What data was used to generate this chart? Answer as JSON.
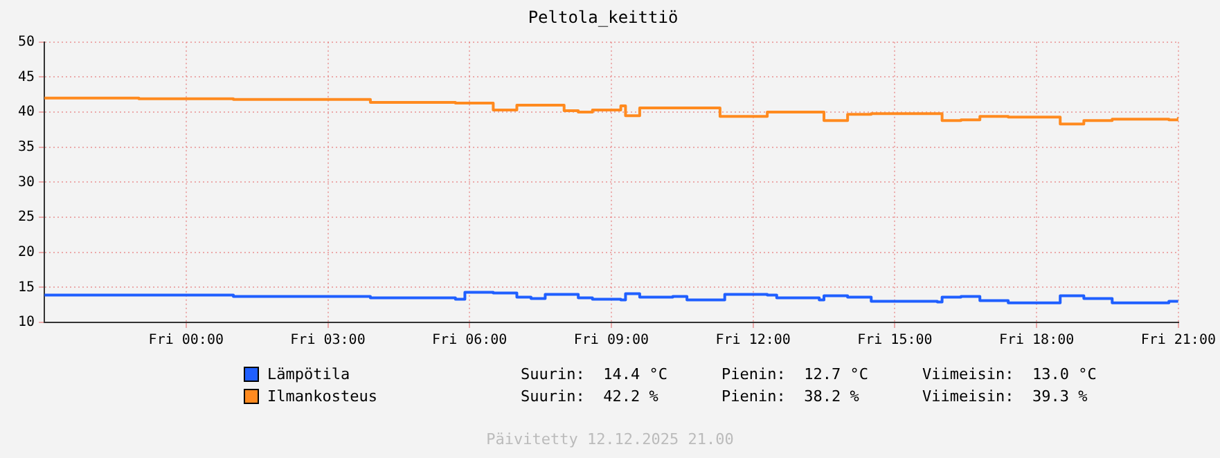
{
  "chart_data": {
    "type": "step",
    "title": "Peltola_keittiö",
    "x": [
      "2025-12-11T21:00",
      "2025-12-11T23:00",
      "2025-12-12T01:00",
      "2025-12-12T03:54",
      "2025-12-12T05:42",
      "2025-12-12T05:54",
      "2025-12-12T06:30",
      "2025-12-12T07:00",
      "2025-12-12T07:18",
      "2025-12-12T07:36",
      "2025-12-12T08:00",
      "2025-12-12T08:18",
      "2025-12-12T08:36",
      "2025-12-12T09:12",
      "2025-12-12T09:18",
      "2025-12-12T09:36",
      "2025-12-12T10:18",
      "2025-12-12T10:36",
      "2025-12-12T11:18",
      "2025-12-12T11:24",
      "2025-12-12T12:18",
      "2025-12-12T12:30",
      "2025-12-12T13:24",
      "2025-12-12T13:30",
      "2025-12-12T14:00",
      "2025-12-12T14:30",
      "2025-12-12T15:54",
      "2025-12-12T16:00",
      "2025-12-12T16:24",
      "2025-12-12T16:48",
      "2025-12-12T17:24",
      "2025-12-12T18:30",
      "2025-12-12T19:00",
      "2025-12-12T19:36",
      "2025-12-12T20:48",
      "2025-12-12T21:00"
    ],
    "series": [
      {
        "name": "Lämpötila",
        "color": "#1f5fff",
        "values": [
          13.9,
          13.9,
          13.7,
          13.5,
          13.3,
          14.3,
          14.2,
          13.6,
          13.4,
          14.0,
          14.0,
          13.5,
          13.3,
          13.2,
          14.1,
          13.6,
          13.7,
          13.2,
          13.2,
          14.0,
          13.9,
          13.5,
          13.2,
          13.8,
          13.6,
          13.0,
          12.9,
          13.6,
          13.7,
          13.1,
          12.8,
          13.8,
          13.4,
          12.8,
          13.0,
          13.0
        ]
      },
      {
        "name": "Ilmankosteus",
        "color": "#ff8a1f",
        "values": [
          42.0,
          41.9,
          41.8,
          41.4,
          41.3,
          41.3,
          40.3,
          41.0,
          41.0,
          41.0,
          40.2,
          40.0,
          40.3,
          40.9,
          39.5,
          40.6,
          40.6,
          40.6,
          39.4,
          39.4,
          40.0,
          40.0,
          40.0,
          38.8,
          39.7,
          39.8,
          39.8,
          38.8,
          38.9,
          39.4,
          39.3,
          38.3,
          38.8,
          39.0,
          38.9,
          39.3
        ]
      }
    ],
    "xlim": [
      "2025-12-11T21:00",
      "2025-12-12T21:00"
    ],
    "xticks": [
      {
        "value": "2025-12-12T00:00",
        "label": "Fri 00:00"
      },
      {
        "value": "2025-12-12T03:00",
        "label": "Fri 03:00"
      },
      {
        "value": "2025-12-12T06:00",
        "label": "Fri 06:00"
      },
      {
        "value": "2025-12-12T09:00",
        "label": "Fri 09:00"
      },
      {
        "value": "2025-12-12T12:00",
        "label": "Fri 12:00"
      },
      {
        "value": "2025-12-12T15:00",
        "label": "Fri 15:00"
      },
      {
        "value": "2025-12-12T18:00",
        "label": "Fri 18:00"
      },
      {
        "value": "2025-12-12T21:00",
        "label": "Fri 21:00"
      }
    ],
    "ylim": [
      10,
      50
    ],
    "yticks": [
      10,
      15,
      20,
      25,
      30,
      35,
      40,
      45,
      50
    ],
    "grid": true,
    "legend": "bottom",
    "annotations": [
      "Suurin:  14.4 °C",
      "Pienin:  12.7 °C",
      "Viimeisin:  13.0 °C",
      "Suurin:  42.2 %",
      "Pienin:  38.2 %",
      "Viimeisin:  39.3 %",
      "Päivitetty 12.12.2025 21.00"
    ]
  }
}
